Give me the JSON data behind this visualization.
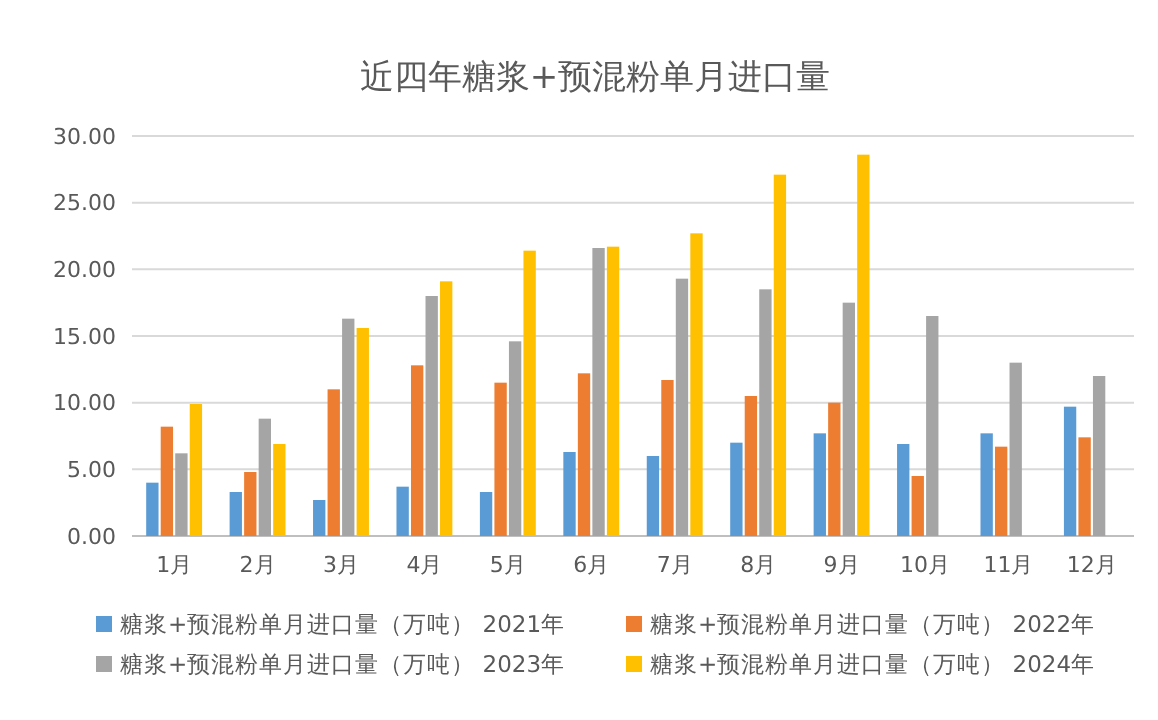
{
  "chart_data": {
    "type": "bar",
    "title": "近四年糖浆+预混粉单月进口量",
    "categories": [
      "1月",
      "2月",
      "3月",
      "4月",
      "5月",
      "6月",
      "7月",
      "8月",
      "9月",
      "10月",
      "11月",
      "12月"
    ],
    "series": [
      {
        "name": "糖浆+预混粉单月进口量（万吨） 2021年",
        "color": "#5b9bd5",
        "values": [
          4.0,
          3.3,
          2.7,
          3.7,
          3.3,
          6.3,
          6.0,
          7.0,
          7.7,
          6.9,
          7.7,
          9.7
        ]
      },
      {
        "name": "糖浆+预混粉单月进口量（万吨） 2022年",
        "color": "#ed7d31",
        "values": [
          8.2,
          4.8,
          11.0,
          12.8,
          11.5,
          12.2,
          11.7,
          10.5,
          10.0,
          4.5,
          6.7,
          7.4
        ]
      },
      {
        "name": "糖浆+预混粉单月进口量（万吨） 2023年",
        "color": "#a5a5a5",
        "values": [
          6.2,
          8.8,
          16.3,
          18.0,
          14.6,
          21.6,
          19.3,
          18.5,
          17.5,
          16.5,
          13.0,
          12.0
        ]
      },
      {
        "name": "糖浆+预混粉单月进口量（万吨） 2024年",
        "color": "#ffc000",
        "values": [
          9.9,
          6.9,
          15.6,
          19.1,
          21.4,
          21.7,
          22.7,
          27.1,
          28.6,
          null,
          null,
          null
        ]
      }
    ],
    "ylim": [
      0,
      30
    ],
    "yticks": [
      {
        "value": 0,
        "label": "0.00"
      },
      {
        "value": 5,
        "label": "5.00"
      },
      {
        "value": 10,
        "label": "10.00"
      },
      {
        "value": 15,
        "label": "15.00"
      },
      {
        "value": 20,
        "label": "20.00"
      },
      {
        "value": 25,
        "label": "25.00"
      },
      {
        "value": 30,
        "label": "30.00"
      }
    ],
    "grid": "y",
    "legend": "bottom"
  }
}
